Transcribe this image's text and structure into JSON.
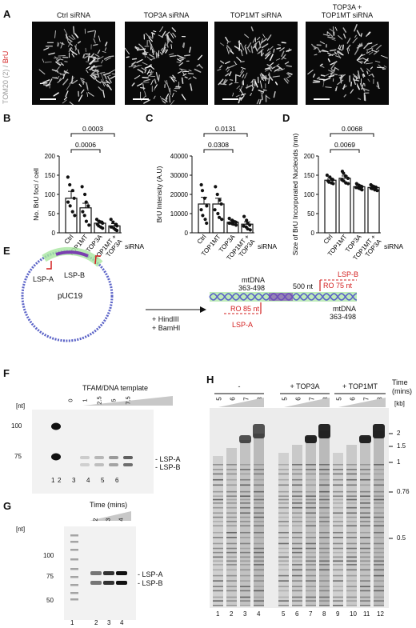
{
  "panels": {
    "A": "A",
    "B": "B",
    "C": "C",
    "D": "D",
    "E": "E",
    "F": "F",
    "G": "G",
    "H": "H"
  },
  "panelA": {
    "titles": [
      "Ctrl siRNA",
      "TOP3A siRNA",
      "TOP1MT siRNA",
      "TOP3A +\nTOP1MT siRNA"
    ],
    "side_label_gray": "TOM20 (2) / ",
    "side_label_red": "BrU",
    "colors": {
      "gray": "#999999",
      "red": "#d32020"
    }
  },
  "chart_data": [
    {
      "id": "B",
      "type": "bar",
      "categories": [
        "Ctrl",
        "TOP1MT",
        "TOP3A",
        "TOP1MT + TOP3A"
      ],
      "values": [
        90,
        65,
        25,
        18
      ],
      "errors": [
        18,
        12,
        5,
        6
      ],
      "points": [
        [
          145,
          125,
          110,
          90,
          80,
          70,
          55,
          45
        ],
        [
          120,
          100,
          80,
          70,
          55,
          45,
          30,
          20
        ],
        [
          35,
          30,
          28,
          25,
          22,
          18,
          15,
          12
        ],
        [
          35,
          28,
          22,
          18,
          15,
          12,
          8,
          6
        ]
      ],
      "ylabel": "No. BrU foci / cell",
      "yticks": [
        0,
        50,
        100,
        150,
        200
      ],
      "ylim": [
        0,
        200
      ],
      "xcaption": "siRNA",
      "significance": [
        {
          "from": 0,
          "to": 2,
          "label": "0.0006"
        },
        {
          "from": 0,
          "to": 3,
          "label": "0.0003"
        }
      ]
    },
    {
      "id": "C",
      "type": "bar",
      "categories": [
        "Ctrl",
        "TOP1MT",
        "TOP3A",
        "TOP1MT + TOP3A"
      ],
      "values": [
        15000,
        15000,
        5500,
        4500
      ],
      "errors": [
        3500,
        3000,
        800,
        1200
      ],
      "points": [
        [
          25000,
          22000,
          18000,
          14000,
          12000,
          9000,
          7000,
          5000
        ],
        [
          24000,
          20000,
          17000,
          15000,
          12000,
          10000,
          8000,
          7000
        ],
        [
          7500,
          6500,
          6000,
          5500,
          5000,
          4800,
          4500,
          4000
        ],
        [
          8500,
          6500,
          5000,
          4000,
          3500,
          3000,
          2000,
          1500
        ]
      ],
      "ylabel": "BrU Intensity (A.U)",
      "yticks": [
        0,
        10000,
        20000,
        30000,
        40000
      ],
      "ylim": [
        0,
        40000
      ],
      "xcaption": "siRNA",
      "significance": [
        {
          "from": 0,
          "to": 2,
          "label": "0.0308"
        },
        {
          "from": 0,
          "to": 3,
          "label": "0.0131"
        }
      ]
    },
    {
      "id": "D",
      "type": "bar",
      "categories": [
        "Ctrl",
        "TOP1MT",
        "TOP3A",
        "TOP1MT + TOP3A"
      ],
      "values": [
        137,
        142,
        120,
        118
      ],
      "errors": [
        5,
        6,
        4,
        4
      ],
      "points": [
        [
          150,
          145,
          140,
          138,
          135,
          132,
          130,
          128
        ],
        [
          160,
          155,
          148,
          142,
          138,
          135,
          130,
          128
        ],
        [
          128,
          124,
          122,
          120,
          118,
          116,
          114,
          112
        ],
        [
          125,
          122,
          120,
          118,
          116,
          115,
          112,
          110
        ]
      ],
      "ylabel": "Size of BrU Incorporated Nucleoids (nm)",
      "yticks": [
        0,
        50,
        100,
        150,
        200
      ],
      "ylim": [
        0,
        200
      ],
      "xcaption": "siRNA",
      "significance": [
        {
          "from": 0,
          "to": 2,
          "label": "0.0069"
        },
        {
          "from": 0,
          "to": 3,
          "label": "0.0068"
        }
      ]
    }
  ],
  "panelE": {
    "plasmid": "pUC19",
    "lsp_a": "LSP-A",
    "lsp_b": "LSP-B",
    "digest": [
      "+ HindIII",
      "+ BamHI"
    ],
    "mtdna_left": [
      "mtDNA",
      "363-498"
    ],
    "fragment": "500 nt",
    "mtdna_right": [
      "mtDNA",
      "363-498"
    ],
    "ro_left": "RO 85 nt",
    "ro_right": "RO 75 nt",
    "lsp_a_red": "LSP-A",
    "lsp_b_red": "LSP-B",
    "colors": {
      "red": "#d32020",
      "blue": "#5b63c7",
      "green": "#a8e6a0",
      "purple": "#7a3fb0"
    }
  },
  "panelF": {
    "header": "TFAM/DNA template",
    "conc": [
      "0",
      "1",
      "2.5",
      "5",
      "7.5"
    ],
    "unit": "[nt]",
    "markers": [
      "100",
      "75"
    ],
    "lanes": [
      "1",
      "2",
      "3",
      "4",
      "5",
      "6"
    ],
    "bands": [
      "LSP-A",
      "LSP-B"
    ]
  },
  "panelG": {
    "header": "Time (mins)",
    "times": [
      "2",
      "3",
      "4"
    ],
    "unit": "[nt]",
    "markers": [
      "100",
      "75",
      "50"
    ],
    "lanes": [
      "1",
      "2",
      "3",
      "4"
    ],
    "bands": [
      "LSP-A",
      "LSP-B"
    ]
  },
  "panelH": {
    "groups": [
      "-",
      "+ TOP3A",
      "+ TOP1MT"
    ],
    "times": [
      "5",
      "6",
      "7",
      "8",
      "5",
      "6",
      "7",
      "8",
      "5",
      "6",
      "7",
      "8"
    ],
    "time_label": "Time\n(mins)",
    "unit": "[kb]",
    "markers": [
      "2",
      "1.5",
      "1",
      "0.76",
      "0.5"
    ],
    "lanes": [
      "1",
      "2",
      "3",
      "4",
      "5",
      "6",
      "7",
      "8",
      "9",
      "10",
      "11",
      "12"
    ]
  }
}
